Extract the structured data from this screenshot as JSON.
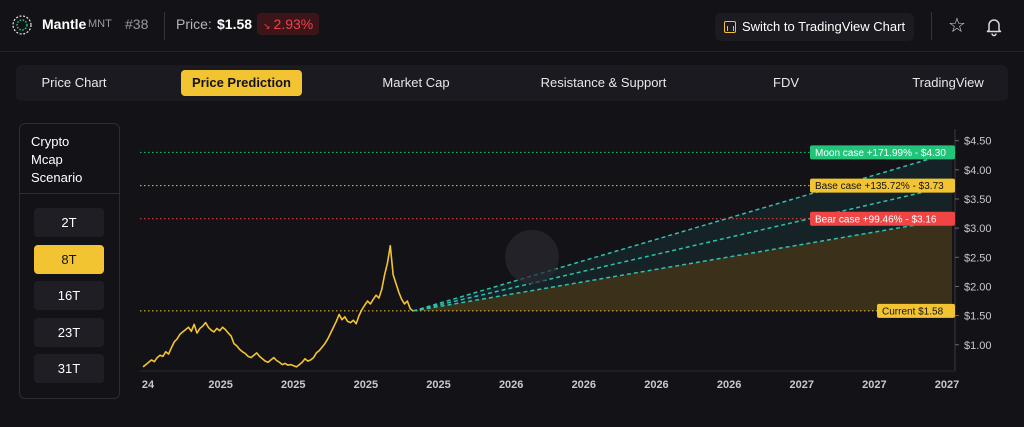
{
  "header": {
    "coin_name": "Mantle",
    "coin_symbol": "MNT",
    "rank": "#38",
    "price_label": "Price:",
    "price": "$1.58",
    "change": "2.93%",
    "change_direction": "down",
    "tradingview_button": "Switch to TradingView Chart",
    "icons": [
      "mantle-logo-icon",
      "chart-icon",
      "star-icon",
      "bell-icon"
    ]
  },
  "tabs": [
    {
      "label": "Price Chart",
      "active": false
    },
    {
      "label": "Price Prediction",
      "active": true
    },
    {
      "label": "Market Cap",
      "active": false
    },
    {
      "label": "Resistance & Support",
      "active": false
    },
    {
      "label": "FDV",
      "active": false
    },
    {
      "label": "TradingView",
      "active": false
    }
  ],
  "scenario": {
    "title": "Crypto\nMcap\nScenario",
    "options": [
      {
        "label": "2T",
        "active": false
      },
      {
        "label": "8T",
        "active": true
      },
      {
        "label": "16T",
        "active": false
      },
      {
        "label": "23T",
        "active": false
      },
      {
        "label": "31T",
        "active": false
      }
    ]
  },
  "colors": {
    "accent": "#f3c431",
    "moon": "#22c47a",
    "base": "#f3c431",
    "bear": "#ef4545",
    "down": "#f2404d",
    "price_line": "#f3c431",
    "projection": "#2dbfb0"
  },
  "chart_data": {
    "type": "line",
    "y_ticks": [
      "$4.50",
      "$4.00",
      "$3.50",
      "$3.00",
      "$2.50",
      "$2.00",
      "$1.50",
      "$1.00"
    ],
    "y_tick_values": [
      4.5,
      4.0,
      3.5,
      3.0,
      2.5,
      2.0,
      1.5,
      1.0
    ],
    "ylim": [
      0.55,
      4.7
    ],
    "x_ticks": [
      "24",
      "2025",
      "2025",
      "2025",
      "2025",
      "2026",
      "2026",
      "2026",
      "2026",
      "2027",
      "2027",
      "2027"
    ],
    "grid": false,
    "current": {
      "label": "Current $1.58",
      "value": 1.58
    },
    "scenarios": [
      {
        "name": "Moon case",
        "label": "Moon case +171.99% - $4.30",
        "value": 4.3,
        "color": "#22c47a",
        "text_color": "#ffffff"
      },
      {
        "name": "Base case",
        "label": "Base case +135.72% - $3.73",
        "value": 3.73,
        "color": "#f3c431",
        "text_color": "#131217"
      },
      {
        "name": "Bear case",
        "label": "Bear case +99.46% - $3.16",
        "value": 3.16,
        "color": "#ef4545",
        "text_color": "#ffffff"
      }
    ],
    "history": [
      0.62,
      0.66,
      0.7,
      0.74,
      0.71,
      0.78,
      0.82,
      0.8,
      0.88,
      0.84,
      0.95,
      1.05,
      1.1,
      1.18,
      1.22,
      1.26,
      1.3,
      1.23,
      1.35,
      1.2,
      1.28,
      1.32,
      1.38,
      1.3,
      1.25,
      1.22,
      1.28,
      1.24,
      1.3,
      1.26,
      1.2,
      1.15,
      1.02,
      0.98,
      0.92,
      0.88,
      0.85,
      0.8,
      0.78,
      0.82,
      0.86,
      0.8,
      0.76,
      0.72,
      0.7,
      0.74,
      0.78,
      0.73,
      0.7,
      0.66,
      0.68,
      0.65,
      0.66,
      0.64,
      0.62,
      0.66,
      0.7,
      0.76,
      0.72,
      0.74,
      0.78,
      0.86,
      0.9,
      0.96,
      1.02,
      1.1,
      1.2,
      1.3,
      1.4,
      1.52,
      1.43,
      1.48,
      1.4,
      1.38,
      1.42,
      1.36,
      1.5,
      1.6,
      1.68,
      1.75,
      1.7,
      1.78,
      1.85,
      1.8,
      1.95,
      2.2,
      2.4,
      2.7,
      2.2,
      2.05,
      1.9,
      1.78,
      1.7,
      1.75,
      1.62,
      1.58
    ],
    "history_x_fraction_end": 0.335
  }
}
